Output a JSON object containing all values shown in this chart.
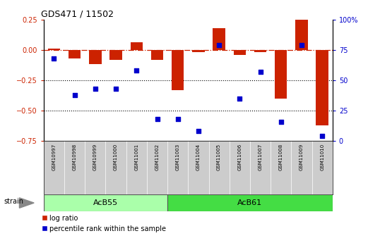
{
  "title": "GDS471 / 11502",
  "samples": [
    "GSM10997",
    "GSM10998",
    "GSM10999",
    "GSM11000",
    "GSM11001",
    "GSM11002",
    "GSM11003",
    "GSM11004",
    "GSM11005",
    "GSM11006",
    "GSM11007",
    "GSM11008",
    "GSM11009",
    "GSM11010"
  ],
  "log_ratio": [
    0.01,
    -0.07,
    -0.12,
    -0.08,
    0.06,
    -0.08,
    -0.33,
    -0.02,
    0.18,
    -0.04,
    -0.02,
    -0.4,
    0.25,
    -0.62
  ],
  "percentile_rank": [
    68,
    38,
    43,
    43,
    58,
    18,
    18,
    8,
    79,
    35,
    57,
    16,
    79,
    4
  ],
  "groups": [
    {
      "label": "AcB55",
      "start": 0,
      "end": 5,
      "color": "#aaffaa"
    },
    {
      "label": "AcB61",
      "start": 6,
      "end": 13,
      "color": "#44dd44"
    }
  ],
  "ylim_left": [
    -0.75,
    0.25
  ],
  "ylim_right": [
    0,
    100
  ],
  "yticks_left": [
    -0.75,
    -0.5,
    -0.25,
    0.0,
    0.25
  ],
  "yticks_right": [
    0,
    25,
    50,
    75,
    100
  ],
  "bar_color": "#CC2200",
  "dot_color": "#0000CC",
  "hline_y": 0.0,
  "dotted_lines": [
    -0.25,
    -0.5
  ],
  "background_color": "#ffffff",
  "strain_label": "strain",
  "legend_items": [
    "log ratio",
    "percentile rank within the sample"
  ],
  "tick_bg_color": "#cccccc"
}
